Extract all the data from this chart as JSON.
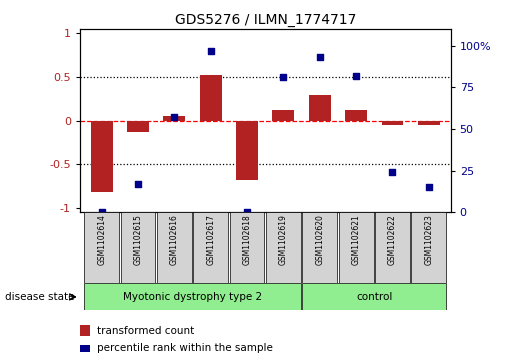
{
  "title": "GDS5276 / ILMN_1774717",
  "samples": [
    "GSM1102614",
    "GSM1102615",
    "GSM1102616",
    "GSM1102617",
    "GSM1102618",
    "GSM1102619",
    "GSM1102620",
    "GSM1102621",
    "GSM1102622",
    "GSM1102623"
  ],
  "bar_values": [
    -0.82,
    -0.13,
    0.05,
    0.52,
    -0.68,
    0.12,
    0.3,
    0.12,
    -0.05,
    -0.05
  ],
  "scatter_values": [
    0.0,
    0.17,
    0.57,
    0.97,
    0.0,
    0.81,
    0.93,
    0.82,
    0.24,
    0.15
  ],
  "groups": [
    {
      "label": "Myotonic dystrophy type 2",
      "start": 0,
      "end": 5,
      "color": "#90EE90"
    },
    {
      "label": "control",
      "start": 6,
      "end": 9,
      "color": "#90EE90"
    }
  ],
  "bar_color": "#B22222",
  "scatter_color": "#00008B",
  "ylim_left": [
    -1.05,
    1.05
  ],
  "ylim_right": [
    0,
    110
  ],
  "yticks_left": [
    -1,
    -0.5,
    0,
    0.5,
    1
  ],
  "ytick_labels_left": [
    "-1",
    "-0.5",
    "0",
    "0.5",
    "1"
  ],
  "yticks_right": [
    0,
    25,
    50,
    75,
    100
  ],
  "ytick_labels_right": [
    "0",
    "25",
    "50",
    "75",
    "100%"
  ],
  "legend_bar_label": "transformed count",
  "legend_scatter_label": "percentile rank within the sample",
  "group_box_color": "#d3d3d3",
  "disease_state_label": "disease state"
}
